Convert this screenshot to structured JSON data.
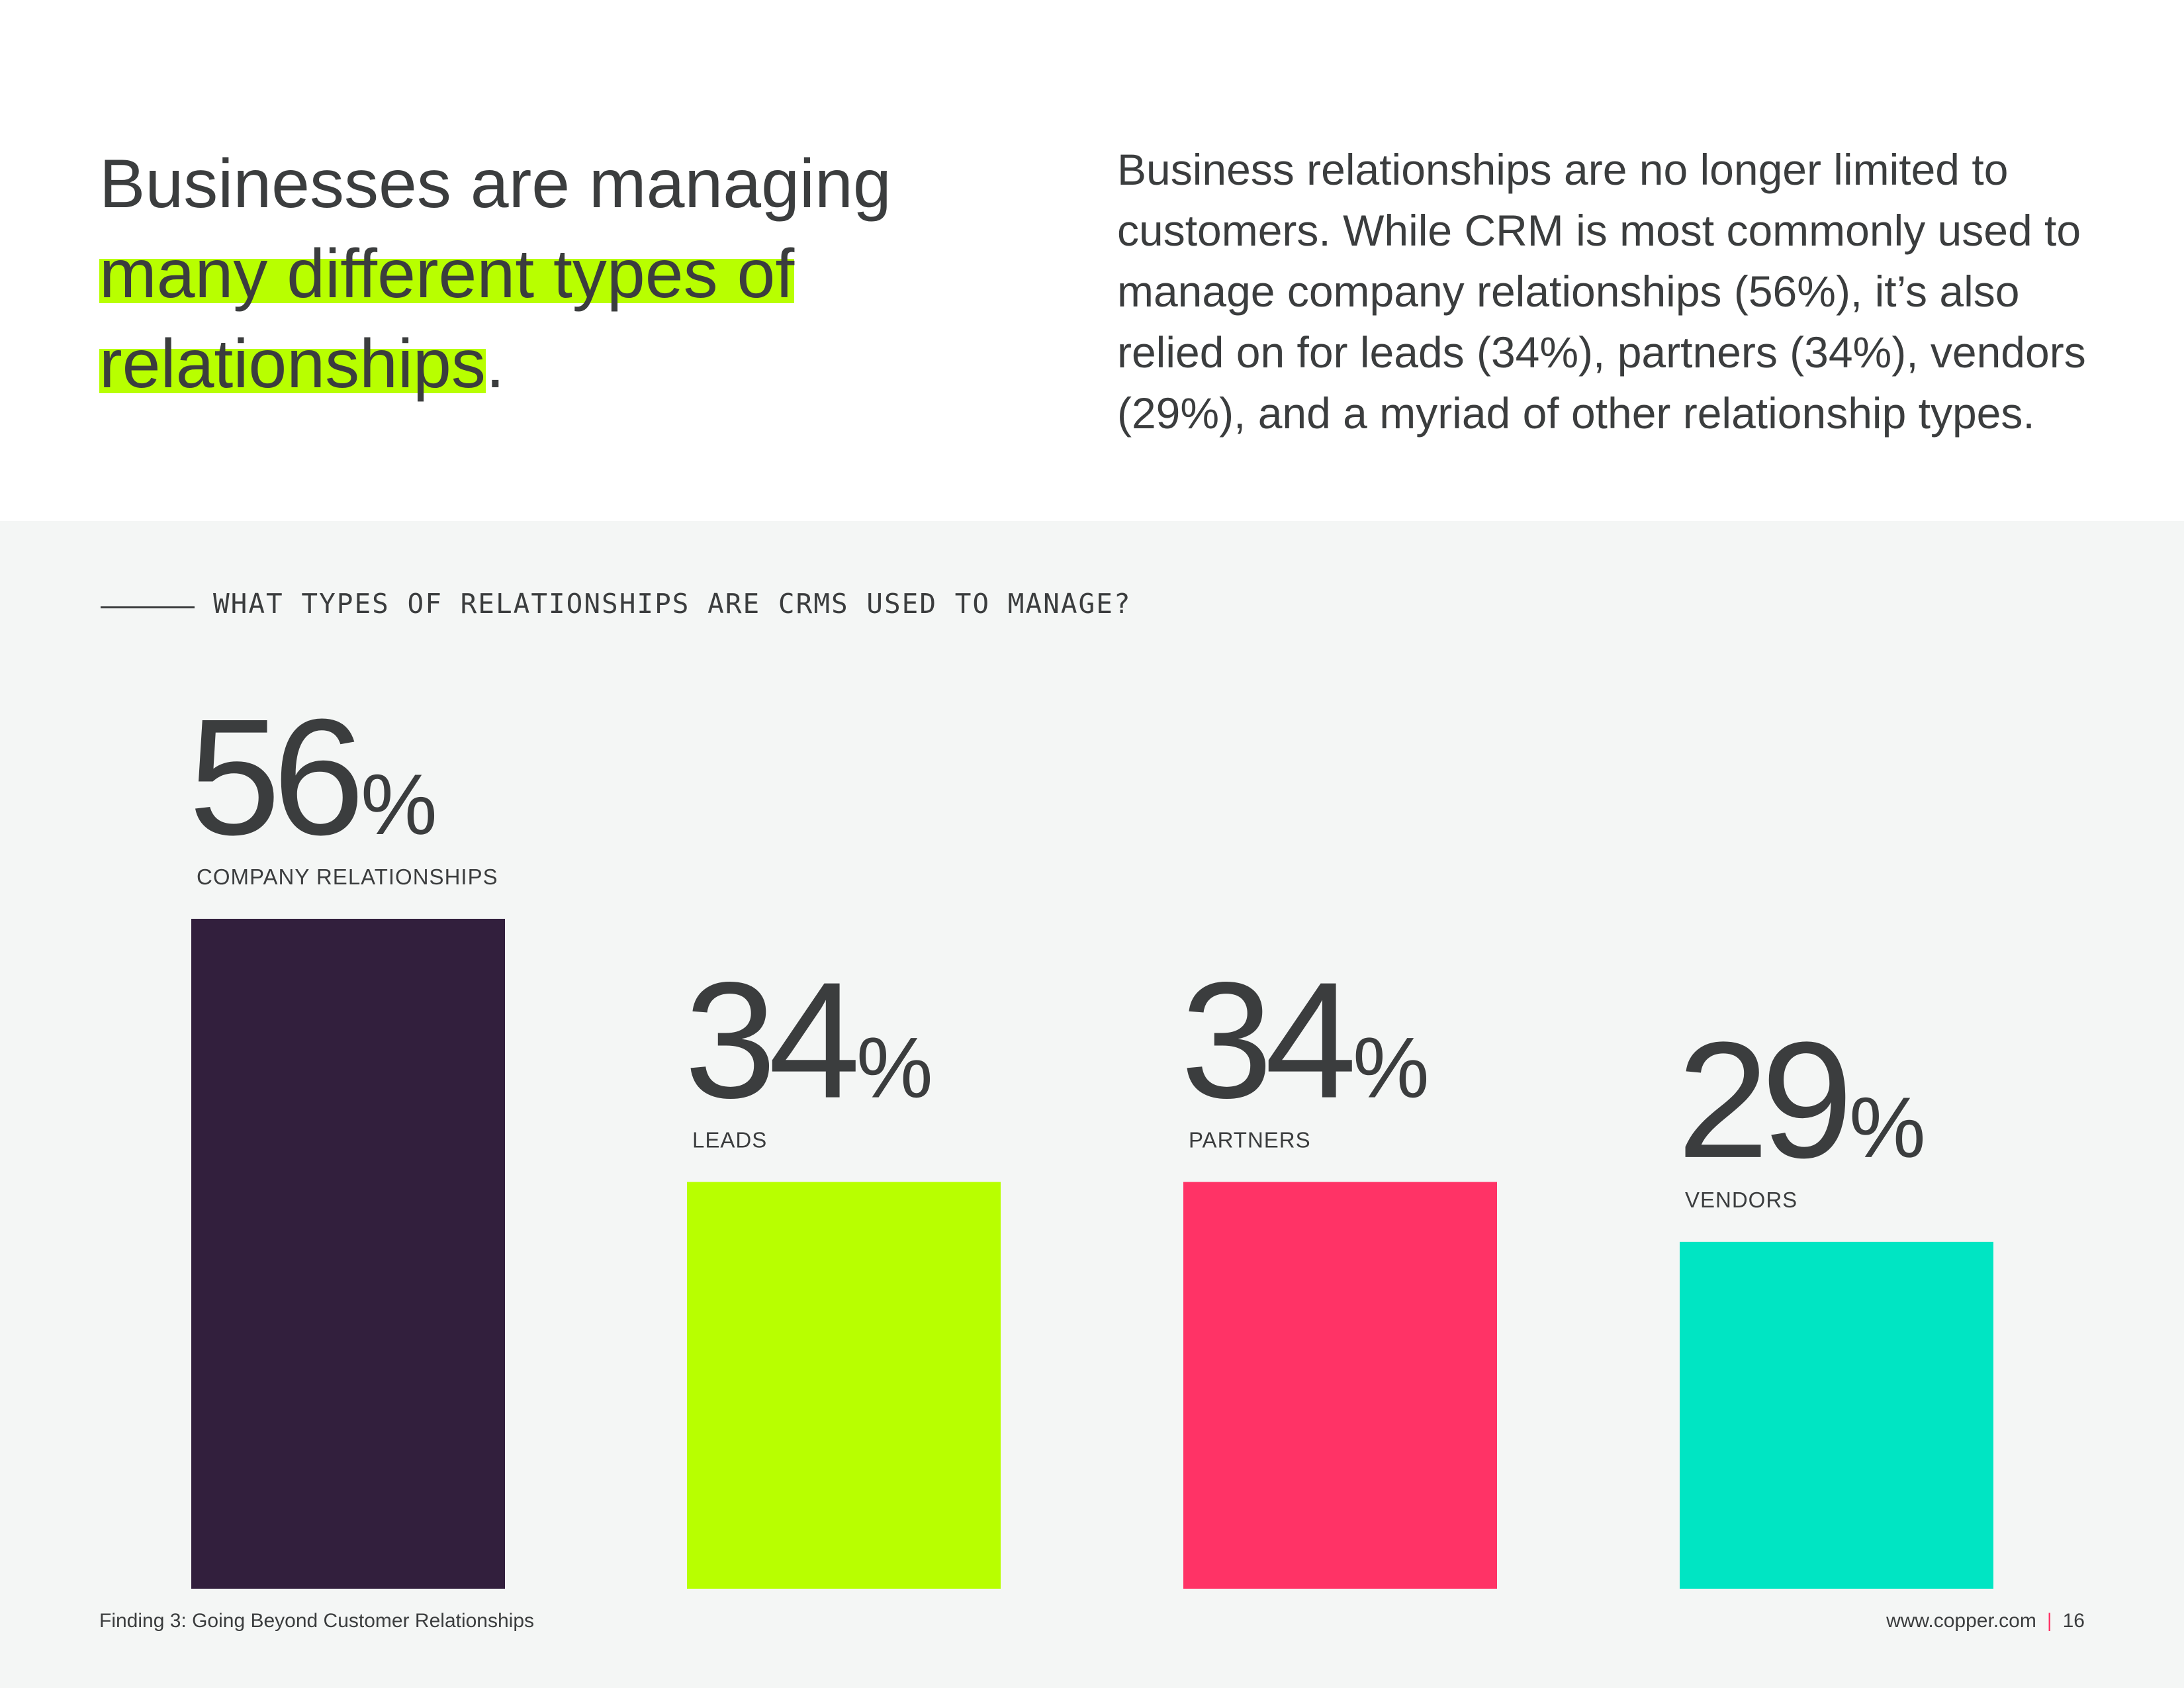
{
  "header": {
    "headline_line1": "Businesses are managing",
    "headline_hl1": "many different types of",
    "headline_hl2": "relationships",
    "headline_end": ".",
    "intro": "Business relationships are no longer limited to customers. While CRM is most commonly used to manage company relationships (56%), it’s also relied on for leads (34%), partners (34%), vendors (29%), and a myriad of other relationship types."
  },
  "chart_data": {
    "type": "bar",
    "title": "WHAT TYPES OF RELATIONSHIPS ARE CRMS USED TO MANAGE?",
    "categories": [
      "COMPANY RELATIONSHIPS",
      "LEADS",
      "PARTNERS",
      "VENDORS"
    ],
    "values": [
      56,
      34,
      34,
      29
    ],
    "value_suffix": "%",
    "colors": [
      "#321f3d",
      "#b8ff00",
      "#ff3366",
      "#00e5c3"
    ],
    "ylim": [
      0,
      56
    ],
    "grid": false,
    "legend": "none"
  },
  "footer": {
    "left": "Finding 3: Going Beyond Customer Relationships",
    "site": "www.copper.com",
    "separator": "|",
    "page": "16"
  }
}
